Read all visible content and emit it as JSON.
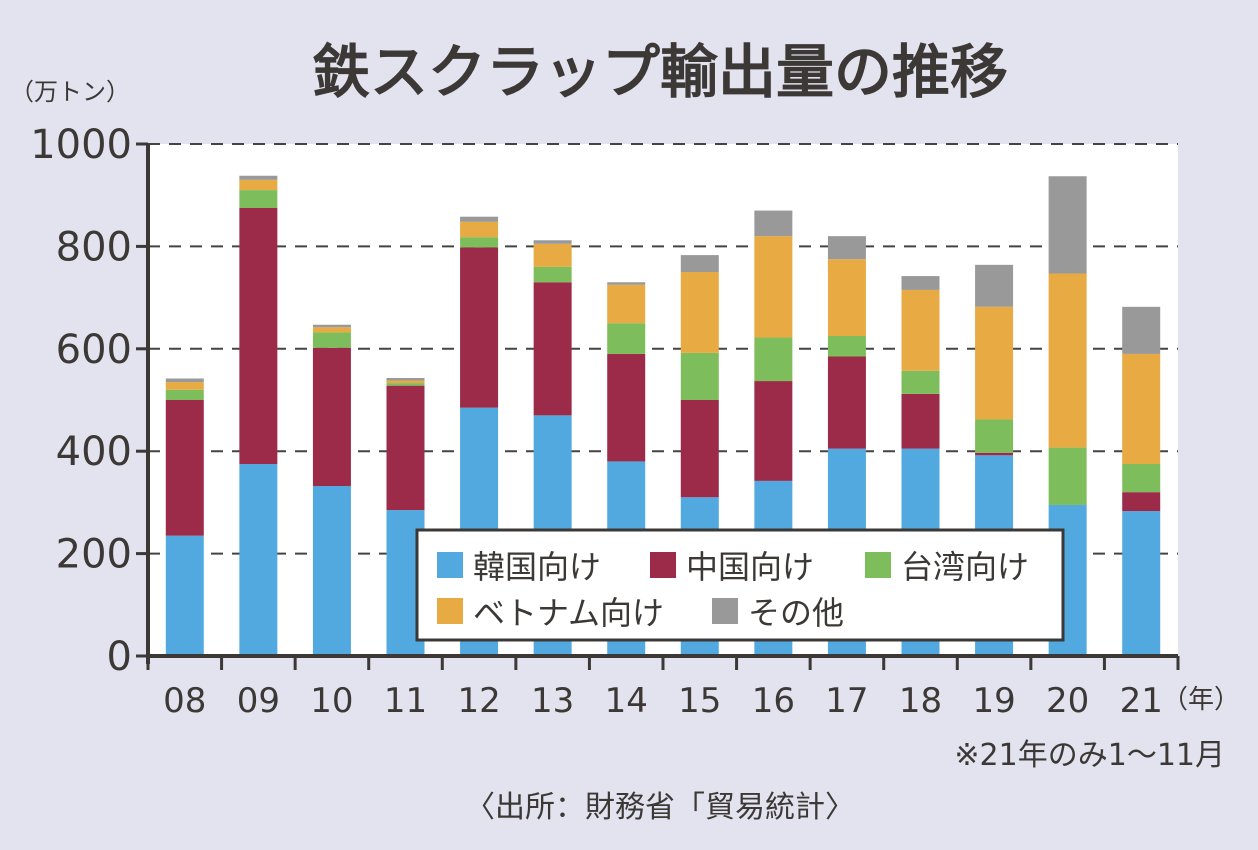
{
  "chart_data": {
    "type": "bar",
    "stacked": true,
    "title": "鉄スクラップ輸出量の推移",
    "ylabel": "（万トン）",
    "xlabel": "（年）",
    "ylim": [
      0,
      1000
    ],
    "yticks": [
      "0",
      "200",
      "400",
      "600",
      "800",
      "1000"
    ],
    "grid": true,
    "legend_position": "bottom-right",
    "categories": [
      "08",
      "09",
      "10",
      "11",
      "12",
      "13",
      "14",
      "15",
      "16",
      "17",
      "18",
      "19",
      "20",
      "21"
    ],
    "series": [
      {
        "name": "韓国向け",
        "color": "#52a9e0",
        "values": [
          235,
          375,
          332,
          285,
          485,
          470,
          380,
          310,
          342,
          405,
          405,
          392,
          295,
          283
        ]
      },
      {
        "name": "中国向け",
        "color": "#9b2b48",
        "values": [
          265,
          500,
          270,
          243,
          313,
          260,
          210,
          190,
          195,
          180,
          107,
          5,
          0,
          37
        ]
      },
      {
        "name": "台湾向け",
        "color": "#7dbd5c",
        "values": [
          20,
          35,
          30,
          5,
          20,
          30,
          60,
          92,
          85,
          40,
          45,
          65,
          112,
          55
        ]
      },
      {
        "name": "ベトナム向け",
        "color": "#e8aa42",
        "values": [
          15,
          20,
          10,
          5,
          30,
          45,
          75,
          158,
          198,
          150,
          158,
          220,
          340,
          215
        ]
      },
      {
        "name": "その他",
        "color": "#999999",
        "values": [
          7,
          8,
          5,
          5,
          10,
          7,
          5,
          33,
          50,
          45,
          27,
          82,
          190,
          92
        ]
      }
    ],
    "annotations": [
      "※21年のみ1～11月",
      "〈出所：財務省「貿易統計〉"
    ]
  }
}
